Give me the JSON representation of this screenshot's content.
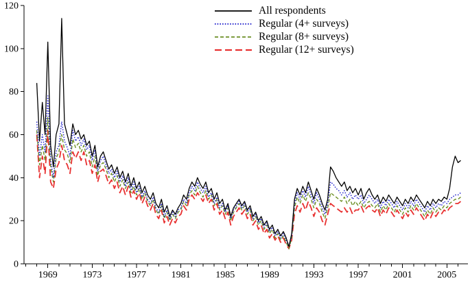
{
  "chart_data": {
    "type": "line",
    "title": "",
    "xlabel": "",
    "ylabel": "",
    "x_unit": "year (quarterly surveys)",
    "x_start": 1968,
    "x_step": 0.25,
    "xlim": [
      1966.85,
      2006.9
    ],
    "ylim": [
      0,
      120
    ],
    "yticks": [
      0,
      20,
      40,
      60,
      80,
      100,
      120
    ],
    "xtick_labels": [
      1969,
      1973,
      1977,
      1981,
      1985,
      1989,
      1993,
      1997,
      2001,
      2005
    ],
    "xticks_minor": [
      1967,
      2006
    ],
    "grid": false,
    "legend_position": "top-center",
    "series": [
      {
        "name": "All respondents",
        "color": "#000000",
        "dash": "",
        "width": 1.3,
        "values": [
          84,
          57,
          75,
          60,
          103,
          55,
          45,
          60,
          65,
          114,
          65,
          60,
          55,
          65,
          60,
          62,
          58,
          60,
          55,
          57,
          50,
          55,
          45,
          50,
          52,
          48,
          44,
          46,
          42,
          45,
          40,
          43,
          38,
          42,
          36,
          40,
          35,
          38,
          33,
          36,
          32,
          30,
          33,
          28,
          26,
          30,
          24,
          27,
          22,
          25,
          23,
          26,
          28,
          32,
          30,
          35,
          38,
          36,
          40,
          37,
          35,
          38,
          33,
          35,
          30,
          33,
          28,
          30,
          25,
          28,
          22,
          26,
          28,
          30,
          27,
          29,
          25,
          27,
          22,
          24,
          20,
          22,
          18,
          20,
          16,
          18,
          14,
          16,
          13,
          15,
          12,
          8,
          14,
          30,
          35,
          32,
          36,
          33,
          38,
          34,
          30,
          35,
          32,
          28,
          25,
          30,
          45,
          43,
          40,
          38,
          36,
          38,
          34,
          36,
          33,
          35,
          32,
          35,
          30,
          33,
          35,
          32,
          30,
          32,
          28,
          31,
          29,
          32,
          30,
          28,
          31,
          29,
          27,
          30,
          28,
          31,
          29,
          32,
          30,
          28,
          26,
          29,
          27,
          30,
          28,
          30,
          29,
          31,
          30,
          35,
          45,
          50,
          47,
          48
        ]
      },
      {
        "name": "Regular (4+ surveys)",
        "color": "#2222cc",
        "dash": "1.5 2.2",
        "width": 1.5,
        "values": [
          66,
          50,
          60,
          52,
          78,
          48,
          40,
          52,
          55,
          66,
          57,
          54,
          50,
          62,
          57,
          59,
          55,
          58,
          53,
          55,
          48,
          53,
          43,
          48,
          50,
          46,
          42,
          44,
          40,
          43,
          38,
          41,
          36,
          40,
          34,
          38,
          33,
          36,
          31,
          34,
          30,
          28,
          31,
          26,
          24,
          28,
          22,
          25,
          21,
          24,
          22,
          25,
          26,
          30,
          28,
          33,
          36,
          34,
          38,
          35,
          33,
          36,
          31,
          33,
          28,
          31,
          26,
          28,
          24,
          27,
          21,
          25,
          27,
          29,
          26,
          28,
          24,
          26,
          21,
          23,
          19,
          21,
          17,
          19,
          15,
          17,
          13,
          15,
          12,
          14,
          11,
          8,
          13,
          28,
          33,
          30,
          34,
          31,
          36,
          32,
          28,
          33,
          30,
          26,
          23,
          28,
          38,
          37,
          35,
          34,
          32,
          34,
          31,
          33,
          30,
          32,
          30,
          32,
          28,
          30,
          32,
          30,
          28,
          30,
          26,
          29,
          27,
          30,
          28,
          26,
          29,
          27,
          25,
          28,
          26,
          29,
          27,
          30,
          28,
          26,
          24,
          27,
          25,
          28,
          26,
          28,
          27,
          29,
          28,
          30,
          31,
          32,
          32,
          33
        ]
      },
      {
        "name": "Regular (8+ surveys)",
        "color": "#6b8e23",
        "dash": "5 3",
        "width": 1.4,
        "values": [
          62,
          46,
          55,
          48,
          68,
          45,
          38,
          49,
          52,
          60,
          53,
          51,
          47,
          58,
          54,
          56,
          52,
          55,
          50,
          52,
          45,
          50,
          41,
          46,
          47,
          44,
          40,
          42,
          38,
          41,
          36,
          39,
          35,
          38,
          33,
          36,
          32,
          35,
          30,
          33,
          29,
          27,
          30,
          25,
          23,
          27,
          21,
          24,
          20,
          23,
          21,
          24,
          25,
          29,
          27,
          32,
          34,
          32,
          36,
          33,
          31,
          34,
          30,
          32,
          27,
          30,
          25,
          27,
          23,
          26,
          20,
          24,
          26,
          28,
          25,
          27,
          23,
          25,
          20,
          22,
          18,
          20,
          16,
          18,
          14,
          16,
          12,
          14,
          11,
          13,
          10,
          7,
          12,
          26,
          31,
          28,
          32,
          29,
          33,
          30,
          26,
          30,
          28,
          24,
          21,
          26,
          33,
          32,
          31,
          30,
          29,
          31,
          28,
          30,
          27,
          29,
          27,
          29,
          26,
          28,
          29,
          27,
          26,
          28,
          24,
          27,
          25,
          28,
          26,
          24,
          27,
          25,
          23,
          26,
          24,
          27,
          25,
          28,
          26,
          24,
          22,
          25,
          23,
          26,
          24,
          26,
          25,
          27,
          26,
          28,
          29,
          30,
          30,
          31
        ]
      },
      {
        "name": "Regular (12+ surveys)",
        "color": "#e83030",
        "dash": "10 5",
        "width": 1.8,
        "values": [
          60,
          40,
          50,
          42,
          62,
          38,
          35,
          44,
          47,
          55,
          48,
          46,
          42,
          52,
          49,
          52,
          48,
          52,
          46,
          48,
          42,
          46,
          38,
          43,
          44,
          41,
          37,
          39,
          35,
          38,
          33,
          36,
          32,
          36,
          31,
          34,
          30,
          33,
          28,
          31,
          27,
          25,
          28,
          23,
          21,
          25,
          19,
          22,
          18,
          21,
          19,
          22,
          23,
          27,
          25,
          30,
          32,
          30,
          33,
          31,
          29,
          32,
          28,
          30,
          25,
          28,
          23,
          25,
          21,
          24,
          18,
          22,
          24,
          26,
          23,
          25,
          21,
          23,
          18,
          20,
          16,
          18,
          14,
          16,
          12,
          14,
          11,
          13,
          10,
          12,
          9,
          7,
          11,
          23,
          27,
          24,
          28,
          25,
          29,
          26,
          22,
          26,
          24,
          20,
          18,
          23,
          28,
          27,
          26,
          25,
          24,
          26,
          24,
          26,
          23,
          25,
          25,
          27,
          24,
          26,
          27,
          25,
          24,
          26,
          22,
          25,
          23,
          26,
          24,
          22,
          25,
          23,
          21,
          24,
          22,
          25,
          23,
          26,
          24,
          22,
          20,
          23,
          21,
          24,
          22,
          24,
          23,
          25,
          24,
          26,
          27,
          28,
          28,
          29
        ]
      }
    ]
  }
}
